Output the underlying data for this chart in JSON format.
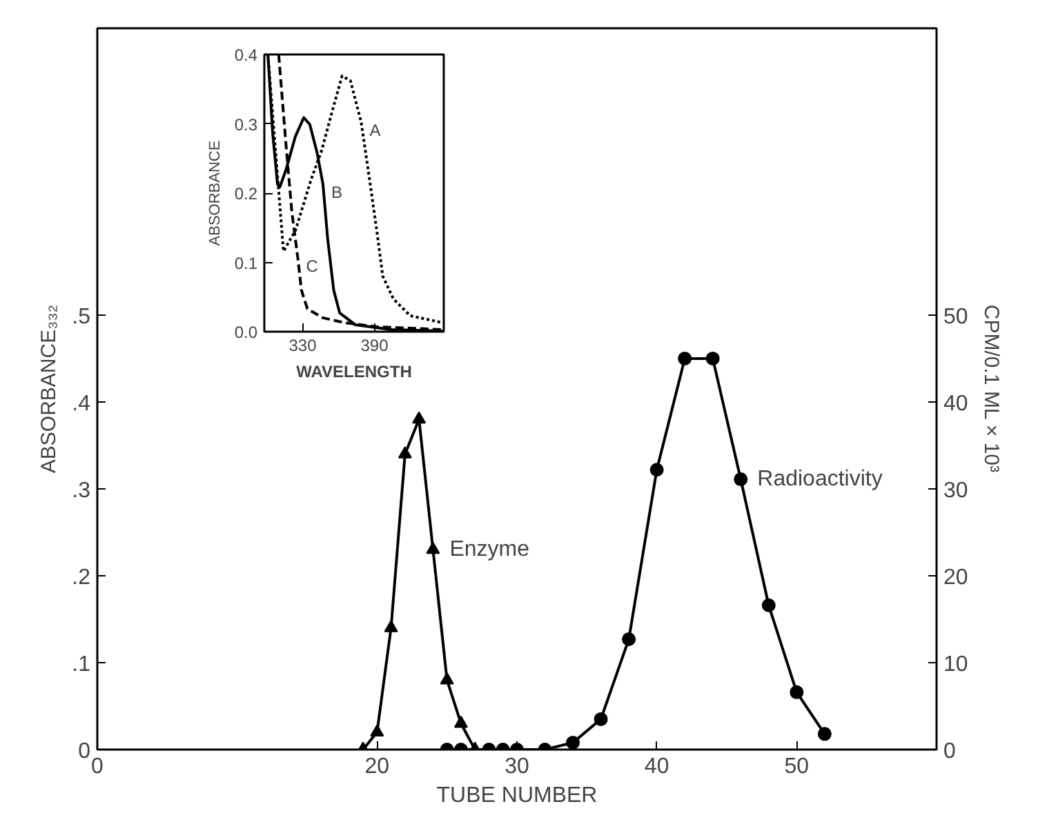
{
  "chart_data": [
    {
      "type": "line",
      "xlabel": "TUBE NUMBER",
      "ylabel": "ABSORBANCE₃₃₂",
      "y2label": "CPM/0.1 ML × 10³",
      "xlim": [
        0,
        60
      ],
      "xticks": [
        0,
        20,
        30,
        40,
        50
      ],
      "ylim": [
        0,
        0.83
      ],
      "yticks": [
        0,
        {
          "value": 0.1,
          "label": ".1"
        },
        {
          "value": 0.2,
          "label": ".2"
        },
        {
          "value": 0.3,
          "label": ".3"
        },
        {
          "value": 0.4,
          "label": ".4"
        },
        {
          "value": 0.5,
          "label": ".5"
        }
      ],
      "y2lim": [
        0,
        83
      ],
      "y2ticks": [
        0,
        10,
        20,
        30,
        40,
        50
      ],
      "series": [
        {
          "name": "Enzyme",
          "color": "#000000",
          "marker": "triangle",
          "x": [
            19,
            20,
            21,
            22,
            23,
            24,
            25,
            26,
            27
          ],
          "values": [
            0,
            0.02,
            0.14,
            0.34,
            0.38,
            0.23,
            0.08,
            0.03,
            0
          ]
        },
        {
          "name": "Radioactivity",
          "color": "#000000",
          "marker": "circle",
          "axis": "y2",
          "x": [
            25,
            26,
            28,
            29,
            30,
            32,
            34,
            36,
            38,
            40,
            42,
            44,
            46,
            48,
            50,
            52
          ],
          "values": [
            0,
            0,
            0,
            0,
            0,
            0,
            0.8,
            3.5,
            12.7,
            32.2,
            45,
            45,
            31.1,
            16.6,
            6.6,
            1.8
          ]
        }
      ]
    },
    {
      "type": "line",
      "xlabel": "WAVELENGTH",
      "ylabel": "ABSORBANCE",
      "xlim": [
        298,
        448
      ],
      "xticks": [
        330,
        390
      ],
      "ylim": [
        0,
        0.4
      ],
      "yticks": [
        {
          "value": 0,
          "label": "0.0"
        },
        0.1,
        0.2,
        0.3,
        0.4
      ],
      "series": [
        {
          "color": "#000000",
          "line_style": "dotted",
          "x": [
            301,
            314,
            324,
            337,
            346,
            356,
            363,
            370,
            379,
            386,
            392,
            397,
            406,
            420,
            447
          ],
          "values": [
            0.4,
            0.116,
            0.146,
            0.219,
            0.262,
            0.326,
            0.369,
            0.362,
            0.302,
            0.219,
            0.146,
            0.08,
            0.047,
            0.023,
            0.013
          ]
        },
        {
          "color": "#000000",
          "line_style": "solid",
          "x": [
            301,
            305,
            309,
            311,
            316,
            324,
            331,
            336,
            342,
            347,
            351,
            356,
            361,
            374,
            404,
            447
          ],
          "values": [
            0.4,
            0.286,
            0.213,
            0.209,
            0.233,
            0.282,
            0.309,
            0.299,
            0.259,
            0.213,
            0.133,
            0.06,
            0.027,
            0.01,
            0.003,
            0.001
          ]
        },
        {
          "color": "#000000",
          "line_style": "dashed",
          "x": [
            310,
            316,
            321,
            326,
            329,
            334,
            347,
            365,
            392,
            447
          ],
          "values": [
            0.4,
            0.272,
            0.173,
            0.106,
            0.06,
            0.033,
            0.02,
            0.013,
            0.007,
            0.003
          ]
        }
      ],
      "annotations": [
        {
          "text": "A",
          "x": 379,
          "y": 0.302
        },
        {
          "text": "B",
          "x": 347,
          "y": 0.213
        },
        {
          "text": "C",
          "x": 326,
          "y": 0.106
        }
      ]
    }
  ]
}
